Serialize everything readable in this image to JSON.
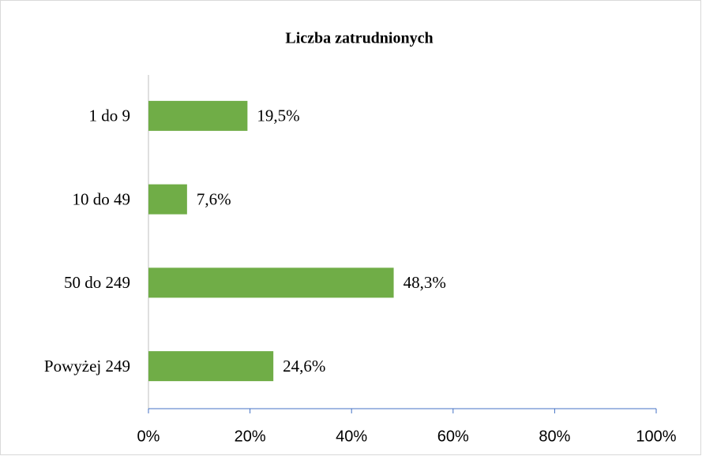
{
  "chart_data": {
    "type": "bar",
    "orientation": "horizontal",
    "title": "Liczba zatrudnionych",
    "categories": [
      "1 do 9",
      "10 do 49",
      "50 do 249",
      "Powyżej 249"
    ],
    "values": [
      19.5,
      7.6,
      48.3,
      24.6
    ],
    "value_labels": [
      "19,5%",
      "7,6%",
      "48,3%",
      "24,6%"
    ],
    "color": "#70ad47",
    "xlim": [
      0,
      100
    ],
    "xticks": [
      {
        "value": 0,
        "label": "0%"
      },
      {
        "value": 20,
        "label": "20%"
      },
      {
        "value": 40,
        "label": "40%"
      },
      {
        "value": 60,
        "label": "60%"
      },
      {
        "value": 80,
        "label": "80%"
      },
      {
        "value": 100,
        "label": "100%"
      }
    ],
    "grid": false
  }
}
